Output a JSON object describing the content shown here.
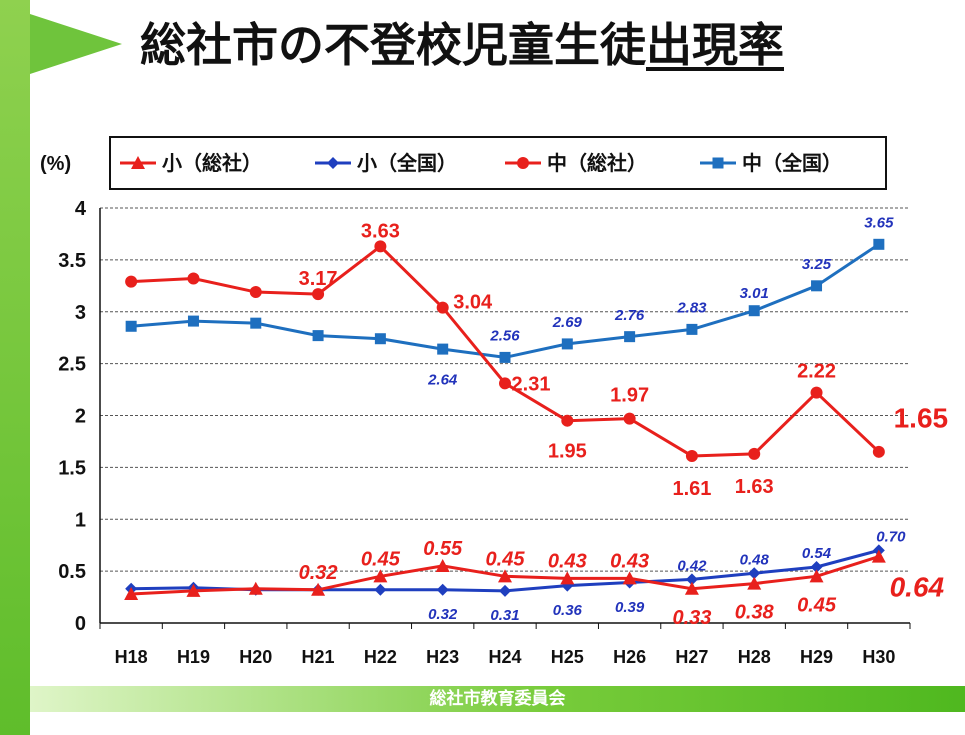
{
  "title": {
    "prefix": "総社市の不登校児童生徒",
    "underlined": "出現率"
  },
  "footer": "総社市教育委員会",
  "chart_data": {
    "type": "line",
    "ylabel": "(%)",
    "ylim": [
      0,
      4
    ],
    "yticks": [
      "0",
      "0.5",
      "1",
      "1.5",
      "2",
      "2.5",
      "3",
      "3.5",
      "4"
    ],
    "grid": true,
    "legend_position": "top",
    "categories": [
      "H18",
      "H19",
      "H20",
      "H21",
      "H22",
      "H23",
      "H24",
      "H25",
      "H26",
      "H27",
      "H28",
      "H29",
      "H30"
    ],
    "series": [
      {
        "name": "小（総社）",
        "color": "#e8201c",
        "marker": "triangle",
        "values": [
          0.28,
          0.31,
          0.33,
          0.32,
          0.45,
          0.55,
          0.45,
          0.43,
          0.43,
          0.33,
          0.38,
          0.45,
          0.64
        ],
        "labels": [
          "",
          "",
          "",
          "0.32",
          "0.45",
          "0.55",
          "0.45",
          "0.43",
          "0.43",
          "0.33",
          "0.38",
          "0.45",
          "0.64"
        ]
      },
      {
        "name": "小（全国）",
        "color": "#1f3fbf",
        "marker": "diamond",
        "values": [
          0.33,
          0.34,
          0.32,
          0.32,
          0.32,
          0.32,
          0.31,
          0.36,
          0.39,
          0.42,
          0.48,
          0.54,
          0.7
        ],
        "labels": [
          "",
          "",
          "",
          "",
          "",
          "0.32",
          "0.31",
          "0.36",
          "0.39",
          "0.42",
          "0.48",
          "0.54",
          "0.70"
        ]
      },
      {
        "name": "中（総社）",
        "color": "#e8201c",
        "marker": "circle",
        "values": [
          3.29,
          3.32,
          3.19,
          3.17,
          3.63,
          3.04,
          2.31,
          1.95,
          1.97,
          1.61,
          1.63,
          2.22,
          1.65
        ],
        "labels": [
          "",
          "",
          "",
          "3.17",
          "3.63",
          "3.04",
          "2.31",
          "1.95",
          "1.97",
          "1.61",
          "1.63",
          "2.22",
          "1.65"
        ]
      },
      {
        "name": "中（全国）",
        "color": "#1e6fbf",
        "marker": "square",
        "values": [
          2.86,
          2.91,
          2.89,
          2.77,
          2.74,
          2.64,
          2.56,
          2.69,
          2.76,
          2.83,
          3.01,
          3.25,
          3.65
        ],
        "labels": [
          "",
          "",
          "",
          "",
          "",
          "2.64",
          "2.56",
          "2.69",
          "2.76",
          "2.83",
          "3.01",
          "3.25",
          "3.65"
        ]
      }
    ]
  }
}
